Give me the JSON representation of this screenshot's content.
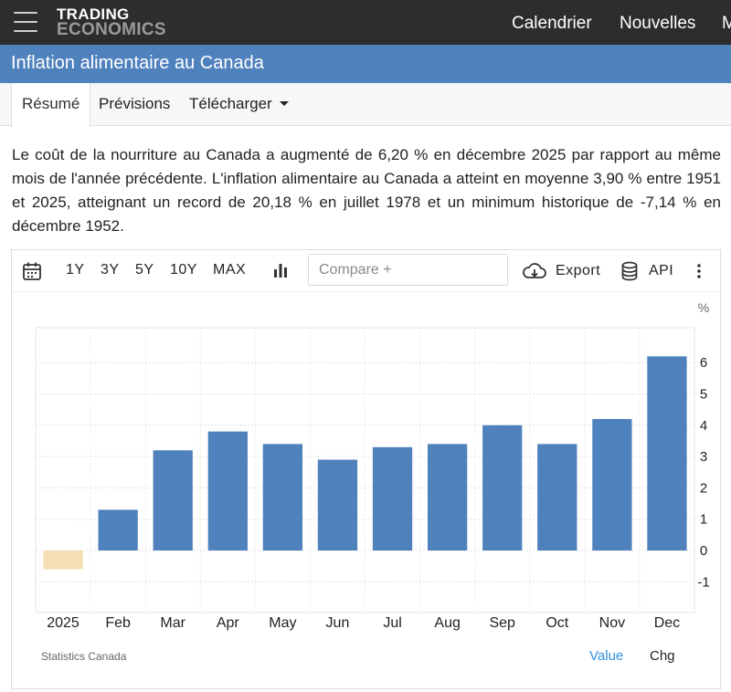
{
  "header": {
    "logo_line1": "TRADING",
    "logo_line2": "ECONOMICS",
    "nav": [
      "Calendrier",
      "Nouvelles",
      "M"
    ]
  },
  "title": "Inflation alimentaire au Canada",
  "tabs": [
    {
      "label": "Résumé",
      "active": true
    },
    {
      "label": "Prévisions",
      "active": false
    },
    {
      "label": "Télécharger",
      "active": false
    }
  ],
  "description": "Le coût de la nourriture au Canada a augmenté de 6,20 % en décembre 2025 par rapport au même mois de l'année précédente. L'inflation alimentaire au Canada a atteint en moyenne 3,90 % entre 1951 et 2025, atteignant un record de 20,18 % en juillet 1978 et un minimum historique de -7,14 % en décembre 1952.",
  "toolbar": {
    "ranges": [
      "1Y",
      "3Y",
      "5Y",
      "10Y",
      "MAX"
    ],
    "compare_placeholder": "Compare +",
    "export_label": "Export",
    "api_label": "API",
    "icons": [
      "calendar-icon",
      "bar-chart-icon",
      "cloud-download-icon",
      "database-icon",
      "more-vertical-icon"
    ]
  },
  "chart_data": {
    "type": "bar",
    "categories": [
      "2025",
      "Feb",
      "Mar",
      "Apr",
      "May",
      "Jun",
      "Jul",
      "Aug",
      "Sep",
      "Oct",
      "Nov",
      "Dec"
    ],
    "values": [
      -0.6,
      1.3,
      3.2,
      3.8,
      3.4,
      2.9,
      3.3,
      3.4,
      4.0,
      3.4,
      4.2,
      6.2
    ],
    "negative_color": "#f5deb3",
    "positive_color": "#4f81bd",
    "yunit": "%",
    "yticks": [
      -1,
      0,
      1,
      2,
      3,
      4,
      5,
      6
    ],
    "ylim": [
      -2,
      7
    ],
    "grid": true
  },
  "footer": {
    "source": "Statistics Canada",
    "value_label": "Value",
    "chg_label": "Chg"
  },
  "colors": {
    "topbar": "#2d2d2d",
    "title_bar": "#4f81bd",
    "accent_link": "#2f8fe0"
  }
}
